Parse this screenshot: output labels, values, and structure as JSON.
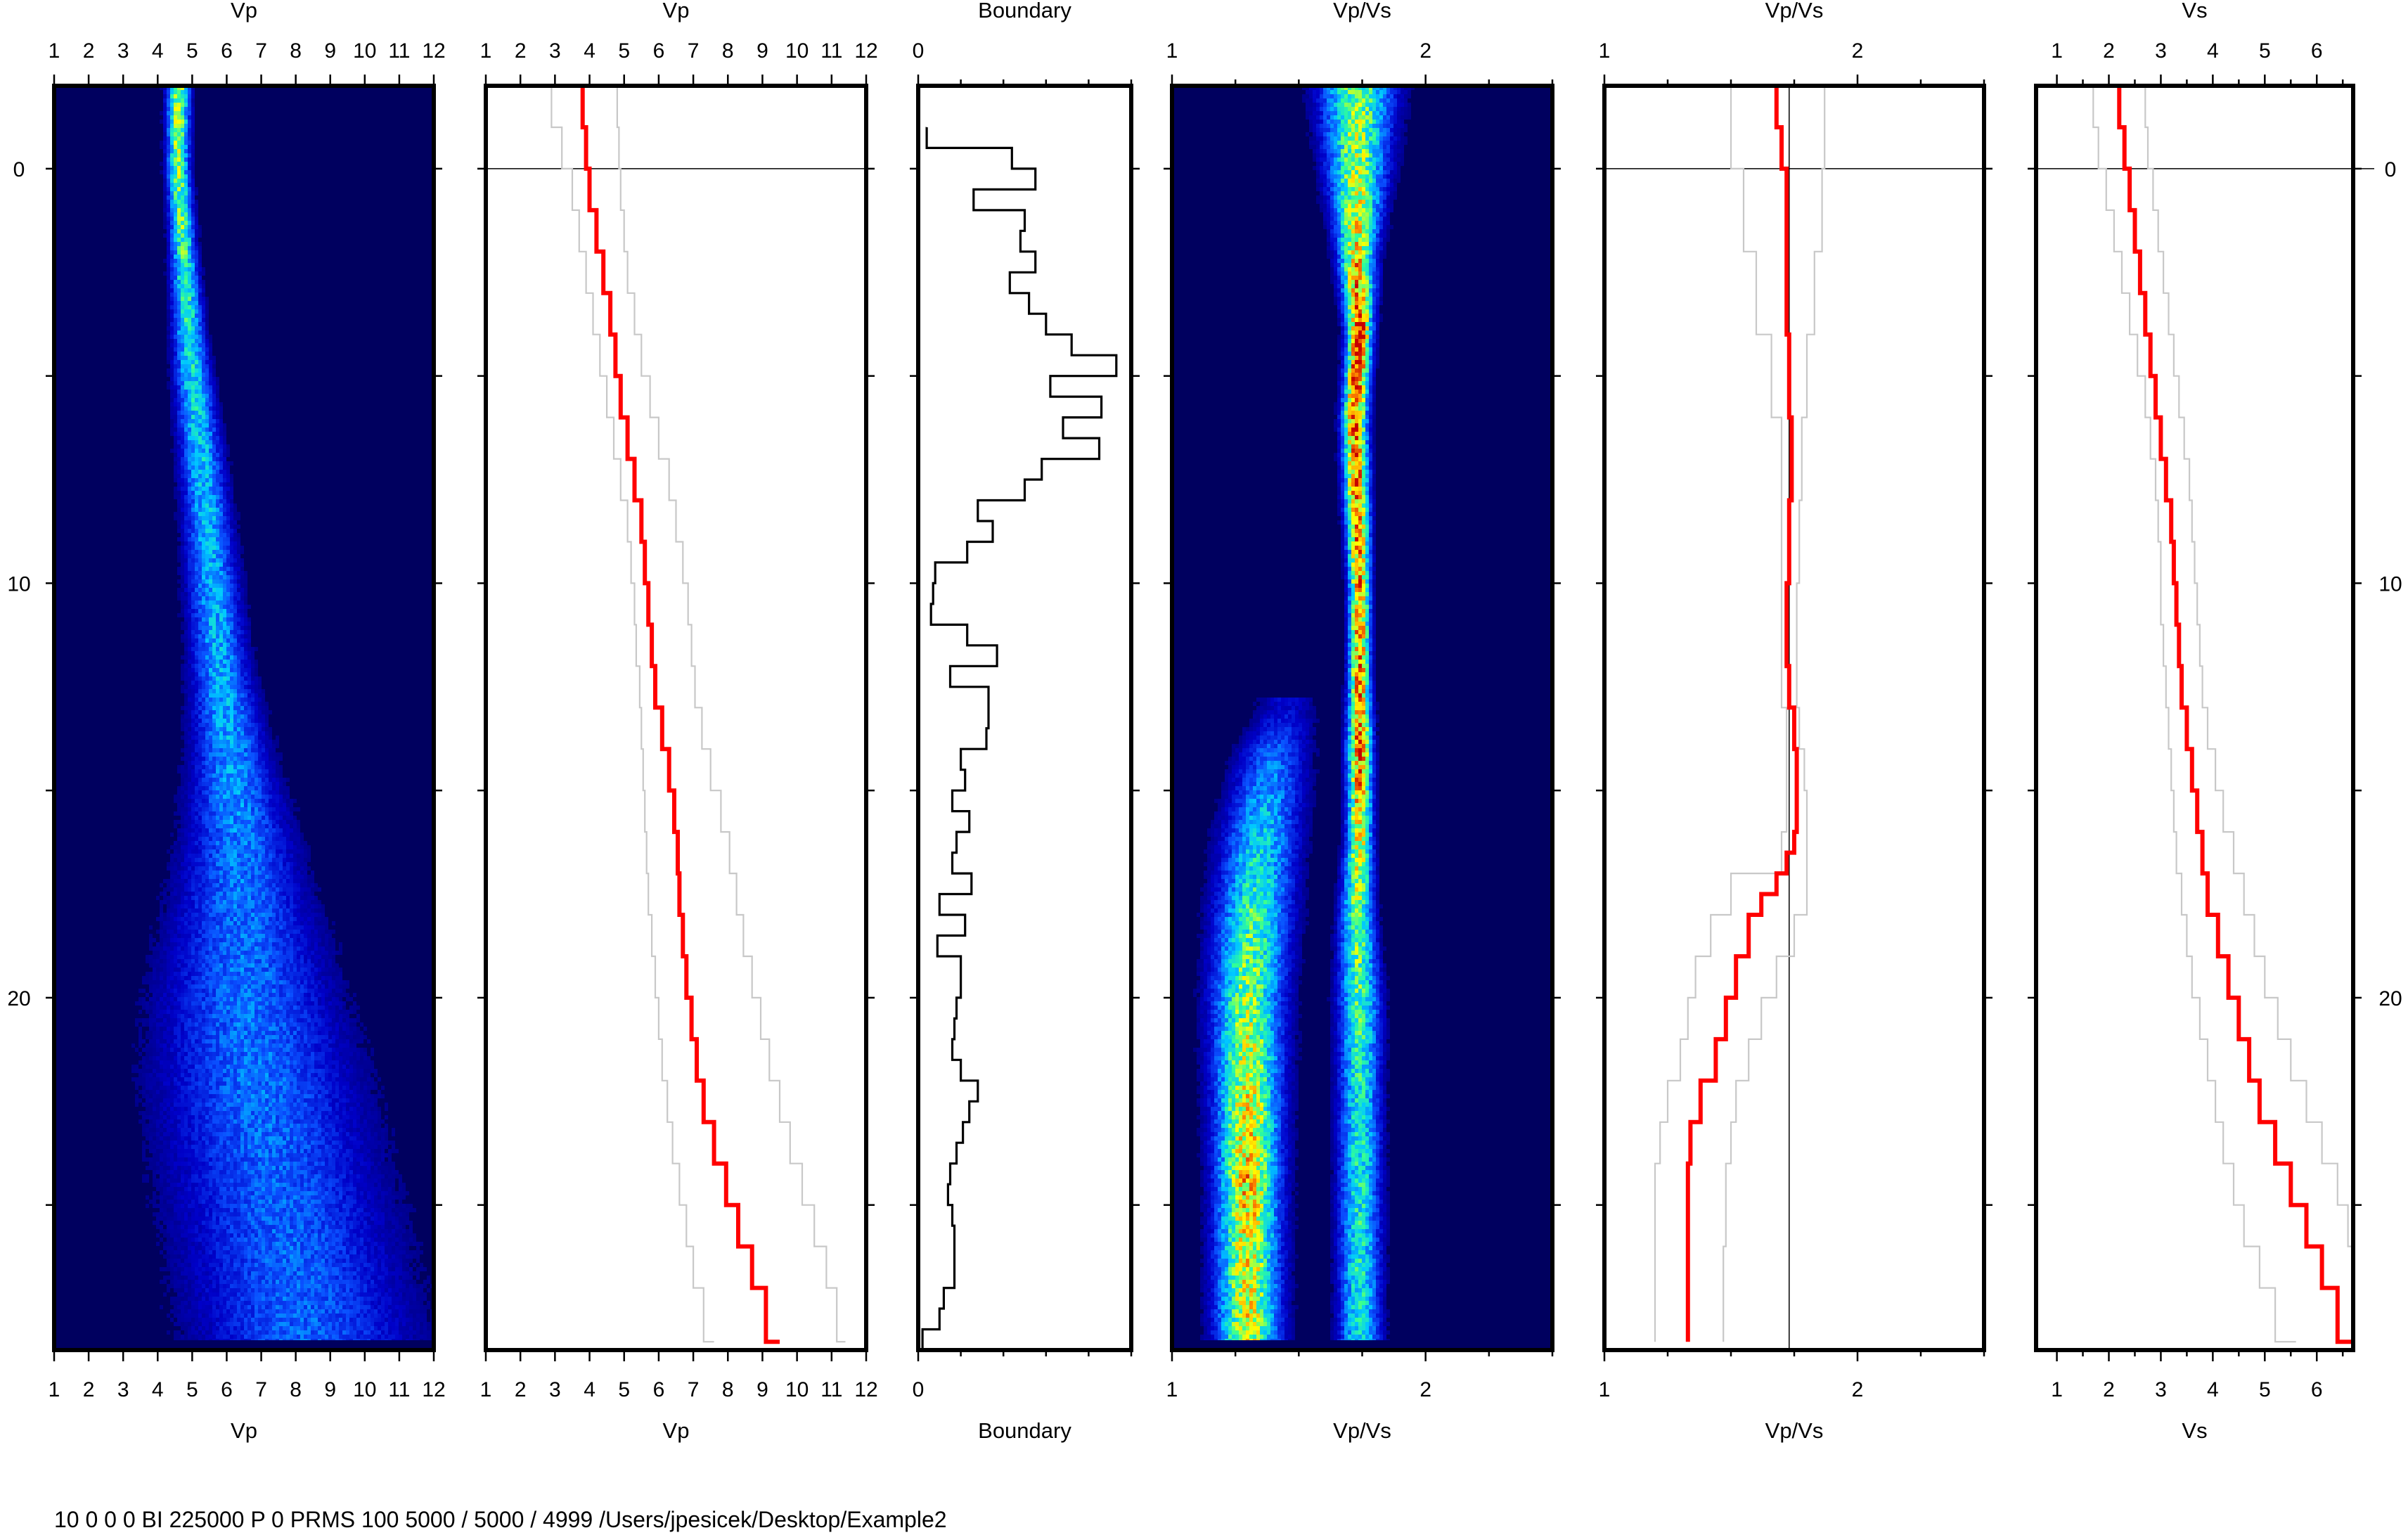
{
  "footer_text": "10 0 0 0 BI 225000 P 0 PRMS 100 5000 / 5000 / 4999 /Users/jpesicek/Desktop/Example2",
  "depth_axis": {
    "range": [
      -2,
      28.5
    ],
    "ticks": [
      0,
      5,
      10,
      15,
      20,
      25
    ],
    "labels": [
      "0",
      "10",
      "20"
    ],
    "label_values": [
      0,
      10,
      20
    ]
  },
  "chart_data": [
    {
      "id": "vp-density",
      "type": "heatmap",
      "title": "Vp",
      "xlabel": "Vp",
      "xlim": [
        1,
        12
      ],
      "xticks": [
        1,
        2,
        3,
        4,
        5,
        6,
        7,
        8,
        9,
        10,
        11,
        12
      ],
      "xtick_labels": [
        "1",
        "2",
        "3",
        "4",
        "5",
        "6",
        "7",
        "8",
        "9",
        "10",
        "11",
        "12"
      ],
      "colormap": [
        "#00005f",
        "#0000c8",
        "#0a50ff",
        "#00c8ff",
        "#32ff96",
        "#ffff00",
        "#ff8c00",
        "#c80000"
      ],
      "ridge": {
        "depth": [
          -2,
          0,
          2,
          4,
          6,
          8,
          10,
          12,
          14,
          16,
          18,
          20,
          22,
          24,
          26,
          28.3
        ],
        "center": [
          4.6,
          4.6,
          4.75,
          4.9,
          5.15,
          5.4,
          5.6,
          5.8,
          6.1,
          6.35,
          6.45,
          6.6,
          6.9,
          7.3,
          7.8,
          8.3
        ],
        "width": [
          0.4,
          0.4,
          0.45,
          0.55,
          0.7,
          0.8,
          0.9,
          1.0,
          1.3,
          1.8,
          2.4,
          3.0,
          3.4,
          3.6,
          3.7,
          3.8
        ],
        "amp": [
          0.65,
          0.6,
          0.55,
          0.5,
          0.45,
          0.42,
          0.4,
          0.4,
          0.38,
          0.34,
          0.32,
          0.32,
          0.32,
          0.3,
          0.3,
          0.3
        ]
      }
    },
    {
      "id": "vp-profile",
      "type": "line",
      "title": "Vp",
      "xlabel": "Vp",
      "xlim": [
        1,
        12
      ],
      "xticks": [
        1,
        2,
        3,
        4,
        5,
        6,
        7,
        8,
        9,
        10,
        11,
        12
      ],
      "xtick_labels": [
        "1",
        "2",
        "3",
        "4",
        "5",
        "6",
        "7",
        "8",
        "9",
        "10",
        "11",
        "12"
      ],
      "depth_ref_line": 0,
      "series": [
        {
          "role": "median",
          "color": "#ff0000",
          "step": 0.5,
          "depth": [
            -2,
            -1,
            0,
            1,
            2,
            3,
            4,
            5,
            6,
            7,
            8,
            9,
            10,
            11,
            12,
            13,
            14,
            15,
            16,
            17,
            18,
            19,
            20,
            21,
            22,
            23,
            24,
            25,
            26,
            27,
            28.3
          ],
          "values": [
            3.8,
            3.9,
            4.0,
            4.2,
            4.4,
            4.6,
            4.75,
            4.9,
            5.1,
            5.3,
            5.5,
            5.6,
            5.7,
            5.8,
            5.9,
            6.1,
            6.3,
            6.45,
            6.55,
            6.6,
            6.7,
            6.8,
            6.95,
            7.1,
            7.3,
            7.6,
            7.95,
            8.3,
            8.7,
            9.1,
            9.5
          ]
        },
        {
          "role": "lower",
          "color": "#c8c8c8",
          "step": 0.5,
          "depth": [
            -2,
            -1,
            0,
            1,
            2,
            3,
            4,
            5,
            6,
            7,
            8,
            9,
            10,
            11,
            12,
            13,
            14,
            15,
            16,
            17,
            18,
            19,
            20,
            21,
            22,
            23,
            24,
            25,
            26,
            27,
            28.3
          ],
          "values": [
            2.9,
            3.2,
            3.5,
            3.7,
            3.9,
            4.1,
            4.3,
            4.5,
            4.7,
            4.9,
            5.1,
            5.2,
            5.3,
            5.35,
            5.45,
            5.5,
            5.55,
            5.6,
            5.65,
            5.7,
            5.8,
            5.9,
            6.0,
            6.1,
            6.25,
            6.4,
            6.6,
            6.8,
            7.0,
            7.3,
            7.6
          ]
        },
        {
          "role": "upper",
          "color": "#c8c8c8",
          "step": 0.5,
          "depth": [
            -2,
            -1,
            0,
            1,
            2,
            3,
            4,
            5,
            6,
            7,
            8,
            9,
            10,
            11,
            12,
            13,
            14,
            15,
            16,
            17,
            18,
            19,
            20,
            21,
            22,
            23,
            24,
            25,
            26,
            27,
            28.3
          ],
          "values": [
            4.8,
            4.85,
            4.9,
            5.0,
            5.1,
            5.3,
            5.5,
            5.75,
            6.0,
            6.3,
            6.5,
            6.7,
            6.85,
            6.95,
            7.05,
            7.25,
            7.5,
            7.8,
            8.05,
            8.25,
            8.45,
            8.7,
            8.95,
            9.2,
            9.5,
            9.8,
            10.15,
            10.5,
            10.85,
            11.15,
            11.4
          ]
        }
      ]
    },
    {
      "id": "boundary",
      "type": "line",
      "title": "Boundary",
      "xlabel": "Boundary",
      "xlim": [
        0,
        1
      ],
      "xticks": [
        0,
        0.2,
        0.4,
        0.6,
        0.8,
        1.0
      ],
      "xtick_labels": [
        "0"
      ],
      "xtick_label_values": [
        0
      ],
      "series": [
        {
          "role": "histogram",
          "color": "#000000",
          "depth": [
            -1,
            -0.5,
            0,
            0.5,
            1,
            1.5,
            2,
            2.5,
            3,
            3.5,
            4,
            4.5,
            5,
            5.5,
            6,
            6.5,
            7,
            7.5,
            8,
            8.5,
            9,
            9.5,
            10,
            10.5,
            11,
            11.5,
            12,
            12.5,
            13,
            13.5,
            14,
            14.5,
            15,
            15.5,
            16,
            16.5,
            17,
            17.5,
            18,
            18.5,
            19,
            19.5,
            20,
            20.5,
            21,
            21.5,
            22,
            22.5,
            23,
            23.5,
            24,
            24.5,
            25,
            25.5,
            26,
            26.5,
            27,
            27.5,
            28,
            28.5
          ],
          "values": [
            0.04,
            0.44,
            0.55,
            0.26,
            0.5,
            0.48,
            0.55,
            0.43,
            0.52,
            0.6,
            0.72,
            0.93,
            0.62,
            0.86,
            0.68,
            0.85,
            0.58,
            0.5,
            0.28,
            0.35,
            0.23,
            0.08,
            0.07,
            0.06,
            0.23,
            0.37,
            0.15,
            0.33,
            0.33,
            0.32,
            0.2,
            0.22,
            0.16,
            0.24,
            0.18,
            0.16,
            0.25,
            0.1,
            0.22,
            0.09,
            0.2,
            0.2,
            0.18,
            0.17,
            0.16,
            0.2,
            0.28,
            0.24,
            0.21,
            0.18,
            0.15,
            0.14,
            0.16,
            0.17,
            0.17,
            0.17,
            0.12,
            0.1,
            0.02,
            0.0
          ]
        }
      ]
    },
    {
      "id": "vpvs-density",
      "type": "heatmap",
      "title": "Vp/Vs",
      "xlabel": "Vp/Vs",
      "xlim": [
        1,
        2.5
      ],
      "xticks": [
        1,
        1.25,
        1.5,
        1.75,
        2,
        2.25,
        2.5
      ],
      "xtick_labels": [
        "1",
        "2"
      ],
      "xtick_label_values": [
        1,
        2
      ],
      "colormap": [
        "#00005f",
        "#0000c8",
        "#0a50ff",
        "#00c8ff",
        "#32ff96",
        "#ffff00",
        "#ff8c00",
        "#c80000"
      ],
      "ridges": [
        {
          "depth": [
            -2,
            0,
            2,
            4,
            6,
            8,
            10,
            12,
            14,
            16,
            18,
            20,
            22,
            24,
            26,
            28.3
          ],
          "center": [
            1.73,
            1.73,
            1.73,
            1.74,
            1.72,
            1.73,
            1.74,
            1.74,
            1.74,
            1.74,
            1.73,
            1.74,
            1.74,
            1.74,
            1.74,
            1.74
          ],
          "width": [
            0.18,
            0.14,
            0.09,
            0.06,
            0.06,
            0.06,
            0.05,
            0.05,
            0.06,
            0.06,
            0.08,
            0.1,
            0.1,
            0.1,
            0.1,
            0.1
          ],
          "amp": [
            0.6,
            0.65,
            0.75,
            0.95,
            0.9,
            0.85,
            0.85,
            0.85,
            0.85,
            0.75,
            0.6,
            0.55,
            0.5,
            0.5,
            0.5,
            0.5
          ]
        },
        {
          "depth": [
            13,
            14,
            16,
            18,
            20,
            22,
            24,
            26,
            28.3
          ],
          "center": [
            1.45,
            1.4,
            1.35,
            1.32,
            1.3,
            1.3,
            1.3,
            1.3,
            1.3
          ],
          "width": [
            0.15,
            0.17,
            0.18,
            0.18,
            0.17,
            0.16,
            0.15,
            0.15,
            0.15
          ],
          "amp": [
            0.15,
            0.3,
            0.45,
            0.55,
            0.62,
            0.7,
            0.78,
            0.72,
            0.7
          ]
        }
      ]
    },
    {
      "id": "vpvs-profile",
      "type": "line",
      "title": "Vp/Vs",
      "xlabel": "Vp/Vs",
      "xlim": [
        1,
        2.5
      ],
      "xticks": [
        1,
        1.25,
        1.5,
        1.75,
        2,
        2.25,
        2.5
      ],
      "xtick_labels": [
        "1",
        "2"
      ],
      "xtick_label_values": [
        1,
        2
      ],
      "depth_ref_line": 0,
      "vref_line": 1.73,
      "series": [
        {
          "role": "median",
          "color": "#ff0000",
          "step": 0.5,
          "depth": [
            -2,
            -1,
            0,
            2,
            4,
            6,
            8,
            10,
            12,
            13,
            14,
            15,
            16,
            16.5,
            17,
            17.5,
            18,
            19,
            20,
            21,
            22,
            23,
            24,
            25,
            26,
            27,
            28.3
          ],
          "values": [
            1.68,
            1.7,
            1.72,
            1.72,
            1.73,
            1.74,
            1.73,
            1.72,
            1.73,
            1.75,
            1.76,
            1.76,
            1.75,
            1.72,
            1.68,
            1.62,
            1.57,
            1.52,
            1.48,
            1.44,
            1.38,
            1.34,
            1.33,
            1.33,
            1.33,
            1.33,
            1.33
          ]
        },
        {
          "role": "lower",
          "color": "#c8c8c8",
          "step": 0.5,
          "depth": [
            -2,
            0,
            2,
            4,
            6,
            8,
            10,
            12,
            13,
            14,
            15,
            16,
            17,
            18,
            19,
            20,
            21,
            22,
            23,
            24,
            26,
            28.3
          ],
          "values": [
            1.5,
            1.55,
            1.6,
            1.66,
            1.7,
            1.7,
            1.7,
            1.7,
            1.72,
            1.72,
            1.72,
            1.7,
            1.5,
            1.42,
            1.36,
            1.33,
            1.3,
            1.25,
            1.22,
            1.2,
            1.2,
            1.2
          ]
        },
        {
          "role": "upper",
          "color": "#c8c8c8",
          "step": 0.5,
          "depth": [
            -2,
            0,
            2,
            4,
            6,
            8,
            10,
            12,
            13,
            14,
            15,
            16,
            17,
            18,
            19,
            20,
            21,
            22,
            23,
            24,
            26,
            28.3
          ],
          "values": [
            1.87,
            1.86,
            1.83,
            1.8,
            1.78,
            1.77,
            1.76,
            1.76,
            1.77,
            1.79,
            1.8,
            1.8,
            1.8,
            1.75,
            1.68,
            1.62,
            1.57,
            1.52,
            1.5,
            1.48,
            1.47,
            1.47
          ]
        }
      ]
    },
    {
      "id": "vs-profile",
      "type": "line",
      "title": "Vs",
      "xlabel": "Vs",
      "xlim": [
        0.6,
        6.7
      ],
      "xticks": [
        1,
        1.5,
        2,
        2.5,
        3,
        3.5,
        4,
        4.5,
        5,
        5.5,
        6,
        6.5
      ],
      "xtick_labels": [
        "1",
        "2",
        "3",
        "4",
        "5",
        "6"
      ],
      "xtick_label_values": [
        1,
        2,
        3,
        4,
        5,
        6
      ],
      "depth_ref_line": 0,
      "series": [
        {
          "role": "median",
          "color": "#ff0000",
          "step": 0.5,
          "depth": [
            -2,
            -1,
            0,
            1,
            2,
            3,
            4,
            5,
            6,
            7,
            8,
            9,
            10,
            11,
            12,
            13,
            14,
            15,
            16,
            17,
            18,
            19,
            20,
            21,
            22,
            23,
            24,
            25,
            26,
            27,
            28.3
          ],
          "values": [
            2.2,
            2.3,
            2.4,
            2.5,
            2.6,
            2.7,
            2.8,
            2.9,
            3.0,
            3.1,
            3.2,
            3.25,
            3.3,
            3.35,
            3.4,
            3.5,
            3.6,
            3.7,
            3.8,
            3.9,
            4.1,
            4.3,
            4.5,
            4.7,
            4.9,
            5.2,
            5.5,
            5.8,
            6.1,
            6.4,
            6.7
          ]
        },
        {
          "role": "lower",
          "color": "#c8c8c8",
          "step": 0.5,
          "depth": [
            -2,
            -1,
            0,
            1,
            2,
            3,
            4,
            5,
            6,
            7,
            8,
            9,
            10,
            11,
            12,
            13,
            14,
            15,
            16,
            17,
            18,
            19,
            20,
            21,
            22,
            23,
            24,
            25,
            26,
            27,
            28.3
          ],
          "values": [
            1.7,
            1.8,
            1.95,
            2.1,
            2.25,
            2.4,
            2.55,
            2.7,
            2.8,
            2.9,
            2.95,
            3.0,
            3.0,
            3.05,
            3.1,
            3.15,
            3.2,
            3.25,
            3.3,
            3.4,
            3.5,
            3.6,
            3.75,
            3.9,
            4.05,
            4.2,
            4.4,
            4.6,
            4.9,
            5.2,
            5.6
          ]
        },
        {
          "role": "upper",
          "color": "#c8c8c8",
          "step": 0.5,
          "depth": [
            -2,
            -1,
            0,
            1,
            2,
            3,
            4,
            5,
            6,
            7,
            8,
            9,
            10,
            11,
            12,
            13,
            14,
            15,
            16,
            17,
            18,
            19,
            20,
            21,
            22,
            23,
            24,
            25,
            26,
            27,
            28.3
          ],
          "values": [
            2.7,
            2.75,
            2.85,
            2.95,
            3.05,
            3.15,
            3.25,
            3.35,
            3.45,
            3.55,
            3.6,
            3.65,
            3.7,
            3.75,
            3.8,
            3.9,
            4.05,
            4.2,
            4.4,
            4.6,
            4.8,
            5.0,
            5.25,
            5.5,
            5.8,
            6.1,
            6.4,
            6.6,
            6.7,
            6.7,
            6.7
          ]
        }
      ]
    }
  ]
}
